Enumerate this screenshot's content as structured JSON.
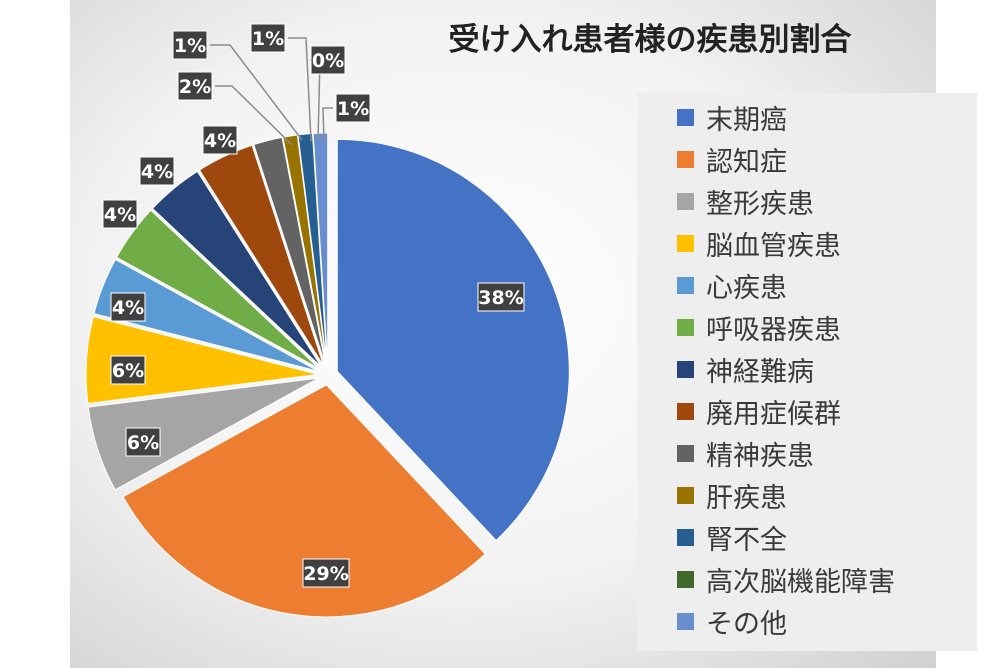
{
  "chart_data": {
    "type": "pie",
    "title": "受け入れ患者様の疾患別割合",
    "legend_position": "right",
    "categories": [
      "末期癌",
      "認知症",
      "整形疾患",
      "脳血管疾患",
      "心疾患",
      "呼吸器疾患",
      "神経難病",
      "廃用症候群",
      "精神疾患",
      "肝疾患",
      "腎不全",
      "高次脳機能障害",
      "その他"
    ],
    "values": [
      38,
      29,
      6,
      6,
      4,
      4,
      4,
      4,
      2,
      1,
      1,
      0,
      1
    ],
    "labels": [
      "38%",
      "29%",
      "6%",
      "6%",
      "4%",
      "4%",
      "4%",
      "4%",
      "2%",
      "1%",
      "1%",
      "0%",
      "1%"
    ],
    "colors": [
      "#4472C4",
      "#ED7D31",
      "#A5A5A5",
      "#FFC000",
      "#5B9BD5",
      "#70AD47",
      "#264478",
      "#9E480E",
      "#636363",
      "#997300",
      "#255E91",
      "#43682B",
      "#698ED0"
    ]
  }
}
